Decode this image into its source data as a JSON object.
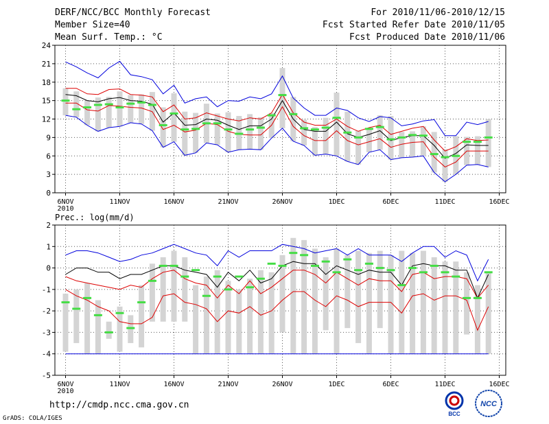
{
  "header": {
    "title": "DERF/NCC/BCC Monthly Forecast",
    "member": "Member Size=40",
    "variable": "Mean Surf. Temp.: °C",
    "period": "For 2010/11/06-2010/12/15",
    "started": "Fcst Started Refer Date 2010/11/05",
    "produced": "Fcst Produced Date 2010/11/06"
  },
  "footer": {
    "url": "http://cmdp.ncc.cma.gov.cn",
    "grads": "GrADS: COLA/IGES",
    "logo1_text": "BCC",
    "logo2_text": "NCC"
  },
  "colors": {
    "outer": "#0000dd",
    "inner": "#dd0000",
    "median": "#000000",
    "bar": "#d4d4d4",
    "marker": "#44dd44"
  },
  "chart_data": [
    {
      "type": "line",
      "name": "temperature",
      "panel_label": "",
      "ylim": [
        0,
        24
      ],
      "yticks": [
        0,
        3,
        6,
        9,
        12,
        15,
        18,
        21,
        24
      ],
      "xticks": [
        {
          "day": 0,
          "label": "6NOV",
          "sub": "2010"
        },
        {
          "day": 5,
          "label": "11NOV"
        },
        {
          "day": 10,
          "label": "16NOV"
        },
        {
          "day": 15,
          "label": "21NOV"
        },
        {
          "day": 20,
          "label": "26NOV"
        },
        {
          "day": 25,
          "label": "1DEC"
        },
        {
          "day": 30,
          "label": "6DEC"
        },
        {
          "day": 35,
          "label": "11DEC"
        },
        {
          "day": 40,
          "label": "16DEC"
        }
      ],
      "grid": true,
      "series": [
        {
          "name": "max",
          "values": [
            21.3,
            20.5,
            19.5,
            18.7,
            20.3,
            21.4,
            19.2,
            18.9,
            18.4,
            16.1,
            17.5,
            14.6,
            15.3,
            15.6,
            14.0,
            15.0,
            14.9,
            15.6,
            15.3,
            16.1,
            19.0,
            15.4,
            13.8,
            12.6,
            12.6,
            13.8,
            13.4,
            12.2,
            11.6,
            12.4,
            12.2,
            10.9,
            11.2,
            11.7,
            11.9,
            9.3,
            9.3,
            11.5,
            11.1,
            11.6
          ]
        },
        {
          "name": "p75",
          "values": [
            17.0,
            17.0,
            16.1,
            16.0,
            16.8,
            16.9,
            16.0,
            15.9,
            15.6,
            13.2,
            14.3,
            12.0,
            12.2,
            13.0,
            12.5,
            12.0,
            11.7,
            12.2,
            12.0,
            13.0,
            16.0,
            13.0,
            11.5,
            11.0,
            11.0,
            12.0,
            10.8,
            10.0,
            10.6,
            11.0,
            9.5,
            10.0,
            10.5,
            10.8,
            8.6,
            6.8,
            7.5,
            8.8,
            8.5,
            8.6
          ]
        },
        {
          "name": "median",
          "values": [
            16.0,
            15.8,
            15.0,
            14.8,
            15.3,
            15.5,
            15.0,
            14.9,
            14.4,
            11.5,
            13.0,
            11.0,
            11.1,
            12.0,
            11.8,
            11.0,
            10.3,
            10.9,
            10.9,
            12.0,
            15.0,
            12.0,
            10.3,
            10.0,
            10.0,
            11.5,
            9.6,
            9.0,
            9.5,
            10.1,
            8.5,
            9.0,
            9.3,
            9.3,
            7.7,
            5.6,
            6.4,
            7.8,
            7.7,
            7.7
          ]
        },
        {
          "name": "p25",
          "values": [
            14.6,
            14.6,
            13.5,
            13.3,
            14.2,
            14.1,
            13.9,
            13.8,
            13.2,
            10.3,
            11.0,
            9.9,
            10.2,
            11.3,
            11.1,
            10.0,
            9.5,
            9.4,
            9.4,
            11.0,
            14.0,
            10.8,
            9.3,
            8.5,
            8.5,
            10.1,
            8.5,
            7.8,
            8.3,
            8.8,
            7.4,
            7.9,
            8.2,
            8.3,
            5.8,
            4.2,
            5.0,
            6.8,
            6.8,
            6.8
          ]
        },
        {
          "name": "min",
          "values": [
            12.6,
            12.3,
            11.0,
            10.0,
            10.6,
            10.8,
            11.4,
            11.2,
            10.1,
            7.4,
            8.3,
            6.1,
            6.5,
            8.1,
            7.8,
            6.6,
            7.0,
            7.1,
            7.0,
            8.9,
            10.5,
            8.4,
            7.7,
            6.1,
            6.3,
            6.0,
            5.1,
            4.6,
            6.6,
            7.0,
            5.4,
            5.7,
            5.8,
            6.0,
            3.3,
            1.8,
            3.0,
            4.5,
            4.6,
            4.2
          ]
        },
        {
          "name": "obs_marker",
          "values": [
            15.0,
            13.6,
            13.9,
            14.3,
            14.4,
            13.9,
            14.5,
            14.7,
            14.3,
            11.0,
            12.9,
            10.3,
            10.4,
            11.3,
            11.3,
            10.3,
            9.6,
            10.3,
            10.6,
            12.6,
            15.9,
            12.8,
            10.5,
            10.3,
            10.6,
            12.2,
            9.8,
            9.0,
            10.4,
            10.7,
            8.7,
            9.0,
            9.4,
            9.3,
            6.3,
            5.8,
            6.0,
            8.3,
            8.3,
            9.0
          ]
        },
        {
          "name": "bar_low",
          "values": [
            12.6,
            12.3,
            11.0,
            10.0,
            10.6,
            10.8,
            11.4,
            11.2,
            10.1,
            7.4,
            8.3,
            6.1,
            6.5,
            8.1,
            7.8,
            6.6,
            7.0,
            7.1,
            7.0,
            8.9,
            10.5,
            8.4,
            7.7,
            6.1,
            6.3,
            6.0,
            5.1,
            4.6,
            6.6,
            7.0,
            5.4,
            5.7,
            5.8,
            6.0,
            3.3,
            1.8,
            3.0,
            4.5,
            4.6,
            4.2
          ]
        },
        {
          "name": "bar_high",
          "values": [
            17.0,
            16.5,
            15.0,
            15.5,
            15.6,
            16.5,
            15.9,
            16.0,
            16.4,
            13.9,
            16.2,
            13.2,
            13.0,
            14.5,
            12.9,
            13.1,
            12.5,
            12.8,
            12.3,
            13.0,
            20.3,
            15.6,
            11.9,
            10.7,
            12.2,
            16.3,
            13.2,
            10.1,
            10.5,
            12.6,
            12.5,
            9.9,
            10.0,
            10.8,
            9.9,
            7.1,
            9.2,
            9.1,
            9.2,
            12.0
          ]
        }
      ]
    },
    {
      "type": "line",
      "name": "precipitation",
      "panel_label": "Prec.: log(mm/d)",
      "ylim": [
        -5,
        2
      ],
      "yticks": [
        -5,
        -4,
        -3,
        -2,
        -1,
        0,
        1,
        2
      ],
      "xticks": [
        {
          "day": 0,
          "label": "6NOV",
          "sub": "2010"
        },
        {
          "day": 5,
          "label": "11NOV"
        },
        {
          "day": 10,
          "label": "16NOV"
        },
        {
          "day": 15,
          "label": "21NOV"
        },
        {
          "day": 20,
          "label": "26NOV"
        },
        {
          "day": 25,
          "label": "1DEC"
        },
        {
          "day": 30,
          "label": "6DEC"
        },
        {
          "day": 35,
          "label": "11DEC"
        },
        {
          "day": 40,
          "label": "16DEC"
        }
      ],
      "grid": true,
      "floor": -4,
      "series": [
        {
          "name": "max",
          "values": [
            0.6,
            0.8,
            0.8,
            0.7,
            0.5,
            0.3,
            0.4,
            0.6,
            0.7,
            0.9,
            1.1,
            0.9,
            0.7,
            0.6,
            0.1,
            0.8,
            0.5,
            0.8,
            0.8,
            0.8,
            1.1,
            1.0,
            0.9,
            0.7,
            0.8,
            0.9,
            0.6,
            0.9,
            0.6,
            0.6,
            0.6,
            0.3,
            0.7,
            1.0,
            1.0,
            0.5,
            0.8,
            0.6,
            -0.6,
            0.4
          ]
        },
        {
          "name": "median",
          "values": [
            -0.3,
            0.0,
            0.0,
            -0.2,
            -0.2,
            -0.5,
            -0.3,
            -0.3,
            -0.1,
            0.1,
            0.1,
            -0.1,
            -0.2,
            -0.3,
            -0.9,
            -0.2,
            -0.6,
            -0.1,
            -0.7,
            -0.5,
            0.1,
            0.3,
            0.2,
            0.2,
            -0.3,
            0.1,
            -0.1,
            -0.3,
            -0.1,
            -0.2,
            -0.2,
            -0.8,
            0.1,
            0.2,
            0.1,
            0.1,
            -0.1,
            -0.1,
            -1.4,
            -0.3
          ]
        },
        {
          "name": "p75",
          "values": [
            -0.4,
            -0.6,
            -0.7,
            -0.8,
            -0.9,
            -1.0,
            -0.8,
            -0.9,
            -0.5,
            -0.2,
            -0.1,
            -0.5,
            -0.7,
            -0.8,
            -1.4,
            -0.8,
            -1.2,
            -0.6,
            -1.2,
            -0.9,
            -0.5,
            -0.1,
            -0.1,
            -0.3,
            -0.7,
            -0.2,
            -0.5,
            -0.8,
            -0.5,
            -0.6,
            -0.6,
            -1.1,
            -0.3,
            -0.2,
            -0.5,
            -0.4,
            -0.4,
            -0.5,
            -1.4,
            -0.8
          ]
        },
        {
          "name": "p25",
          "values": [
            -1.0,
            -1.3,
            -1.5,
            -1.8,
            -2.0,
            -2.5,
            -2.6,
            -2.6,
            -2.3,
            -1.3,
            -1.2,
            -1.6,
            -1.7,
            -1.9,
            -2.5,
            -2.0,
            -2.1,
            -1.8,
            -2.2,
            -2.0,
            -1.5,
            -1.1,
            -1.1,
            -1.5,
            -1.8,
            -1.3,
            -1.5,
            -1.8,
            -1.6,
            -1.6,
            -1.6,
            -2.1,
            -1.3,
            -1.2,
            -1.5,
            -1.3,
            -1.3,
            -1.5,
            -2.9,
            -1.8
          ]
        },
        {
          "name": "obs_marker",
          "values": [
            -1.6,
            -1.9,
            -1.4,
            -2.2,
            -3.0,
            -2.1,
            -2.8,
            -1.6,
            -0.6,
            0.1,
            0.1,
            -0.4,
            -0.1,
            -1.3,
            -0.4,
            -1.0,
            -0.4,
            -0.9,
            -0.5,
            0.2,
            0.1,
            0.7,
            0.6,
            0.1,
            0.3,
            -0.2,
            0.4,
            -0.1,
            0.2,
            0.0,
            -0.1,
            -0.8,
            0.0,
            -0.2,
            0.1,
            -0.2,
            -0.4,
            -1.4,
            -1.4,
            -0.2
          ]
        },
        {
          "name": "bar_low",
          "values": [
            -3.9,
            -3.5,
            -4.0,
            -4.0,
            -3.3,
            -3.9,
            -3.5,
            -3.7,
            -2.5,
            -2.5,
            -2.5,
            -2.5,
            -4.0,
            -4.0,
            -4.0,
            -4.0,
            -4.0,
            -4.0,
            -4.0,
            -4.0,
            -3.0,
            -4.0,
            -4.0,
            -4.0,
            -2.9,
            -4.0,
            -2.8,
            -3.5,
            -4.0,
            -2.8,
            -4.0,
            -4.0,
            -4.0,
            -4.0,
            -4.0,
            -4.0,
            -4.0,
            -3.1,
            -4.0,
            -4.0
          ]
        },
        {
          "name": "bar_high",
          "values": [
            -1.2,
            -1.0,
            -0.7,
            -1.5,
            -2.5,
            -1.8,
            -2.2,
            -0.8,
            0.2,
            0.5,
            0.8,
            0.5,
            -0.8,
            -0.4,
            -0.1,
            -0.6,
            -1.0,
            -0.5,
            -0.1,
            -0.2,
            0.6,
            1.4,
            1.3,
            0.9,
            0.5,
            0.9,
            0.6,
            0.8,
            0.7,
            0.8,
            0.6,
            0.8,
            0.7,
            0.8,
            0.5,
            0.3,
            0.3,
            -0.2,
            -0.8,
            -0.2
          ]
        }
      ]
    }
  ]
}
